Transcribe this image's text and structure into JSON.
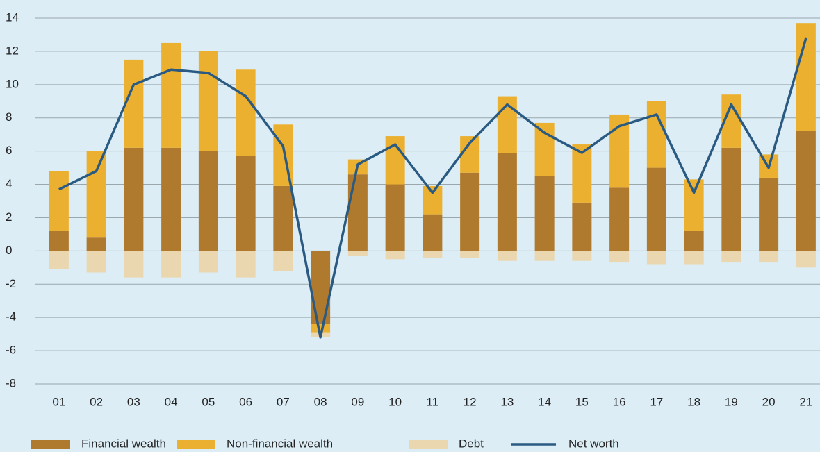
{
  "chart_data": {
    "type": "bar",
    "categories": [
      "01",
      "02",
      "03",
      "04",
      "05",
      "06",
      "07",
      "08",
      "09",
      "10",
      "11",
      "12",
      "13",
      "14",
      "15",
      "16",
      "17",
      "18",
      "19",
      "20",
      "21"
    ],
    "series": [
      {
        "name": "Financial wealth",
        "color": "#b07a2e",
        "values": [
          1.2,
          0.8,
          6.2,
          6.2,
          6.0,
          5.7,
          3.9,
          -4.4,
          4.6,
          4.0,
          2.2,
          4.7,
          5.9,
          4.5,
          2.9,
          3.8,
          5.0,
          1.2,
          6.2,
          4.4,
          7.2
        ]
      },
      {
        "name": "Non-financial wealth",
        "color": "#ebb030",
        "values": [
          3.6,
          5.2,
          5.3,
          6.3,
          6.0,
          5.2,
          3.7,
          -0.5,
          0.9,
          2.9,
          1.7,
          2.2,
          3.4,
          3.2,
          3.5,
          4.4,
          4.0,
          3.1,
          3.2,
          1.4,
          6.5
        ]
      },
      {
        "name": "Debt",
        "color": "#ead7b0",
        "values": [
          -1.1,
          -1.3,
          -1.6,
          -1.6,
          -1.3,
          -1.6,
          -1.2,
          -0.3,
          -0.3,
          -0.5,
          -0.4,
          -0.4,
          -0.6,
          -0.6,
          -0.6,
          -0.7,
          -0.8,
          -0.8,
          -0.7,
          -0.7,
          -1.0
        ]
      },
      {
        "name": "Net worth",
        "color": "#2a5a82",
        "type": "line",
        "values": [
          3.7,
          4.8,
          10.0,
          10.9,
          10.7,
          9.3,
          6.3,
          -5.2,
          5.2,
          6.4,
          3.5,
          6.5,
          8.8,
          7.1,
          5.9,
          7.5,
          8.2,
          3.5,
          8.8,
          5.0,
          12.8
        ]
      }
    ],
    "ylim": [
      -8,
      14
    ],
    "yticks": [
      -8,
      -6,
      -4,
      -2,
      0,
      2,
      4,
      6,
      8,
      10,
      12,
      14
    ],
    "grid": true,
    "legend": "bottom"
  }
}
